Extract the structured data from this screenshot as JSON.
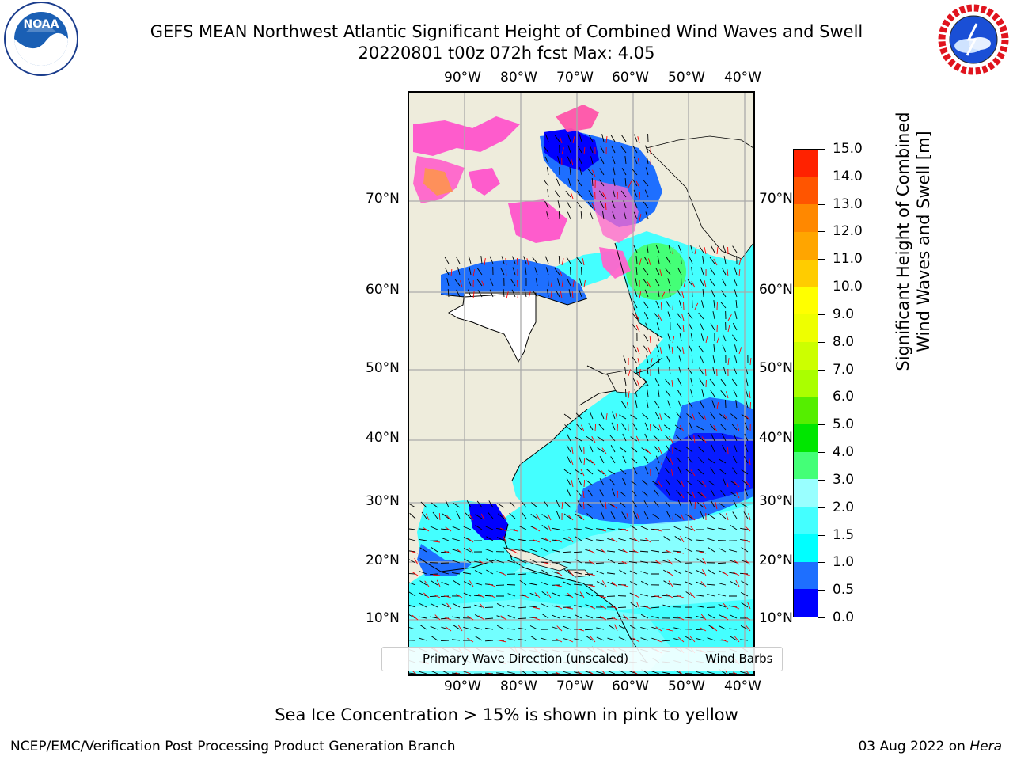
{
  "header": {
    "title_line1": "GEFS MEAN Northwest Atlantic Significant Height of Combined Wind Waves and Swell",
    "title_line2": "20220801 t00z 072h fcst   Max: 4.05"
  },
  "logos": {
    "left": {
      "name": "NOAA",
      "ring_text": "NATIONAL OCEANIC AND ATMOSPHERIC ADMINISTRATION · U.S. DEPARTMENT OF COMMERCE"
    },
    "right": {
      "name": "NATIONAL WEATHER SERVICE"
    }
  },
  "map": {
    "lon_ticks": [
      "90°W",
      "80°W",
      "70°W",
      "60°W",
      "50°W",
      "40°W"
    ],
    "lat_ticks": [
      "70°N",
      "60°N",
      "50°N",
      "40°N",
      "30°N",
      "20°N",
      "10°N"
    ],
    "land_color": "#eeecdc",
    "grid": true
  },
  "colorbar": {
    "title_line1": "Significant Height of Combined",
    "title_line2": "Wind Waves and Swell [m]",
    "ticks": [
      "0.0",
      "0.5",
      "1.0",
      "1.5",
      "2.0",
      "3.0",
      "4.0",
      "5.0",
      "6.0",
      "7.0",
      "8.0",
      "9.0",
      "10.0",
      "11.0",
      "12.0",
      "13.0",
      "14.0",
      "15.0"
    ],
    "colors": [
      "#0000ff",
      "#1e6fff",
      "#00ffff",
      "#44ffff",
      "#99ffff",
      "#44ff77",
      "#00e600",
      "#55ee00",
      "#aaff00",
      "#ccff00",
      "#eeff00",
      "#ffff00",
      "#ffcc00",
      "#ffa500",
      "#ff8800",
      "#ff5500",
      "#ff2200"
    ]
  },
  "legend": {
    "wave_direction": "Primary Wave Direction (unscaled)",
    "wind_barbs": "Wind Barbs",
    "wave_color": "#ff0000",
    "barb_color": "#000000"
  },
  "note": "Sea Ice Concentration > 15% is shown in pink to yellow",
  "footer": {
    "left": "NCEP/EMC/Verification Post Processing Product Generation Branch",
    "date": "03 Aug 2022 on",
    "machine": "Hera"
  }
}
